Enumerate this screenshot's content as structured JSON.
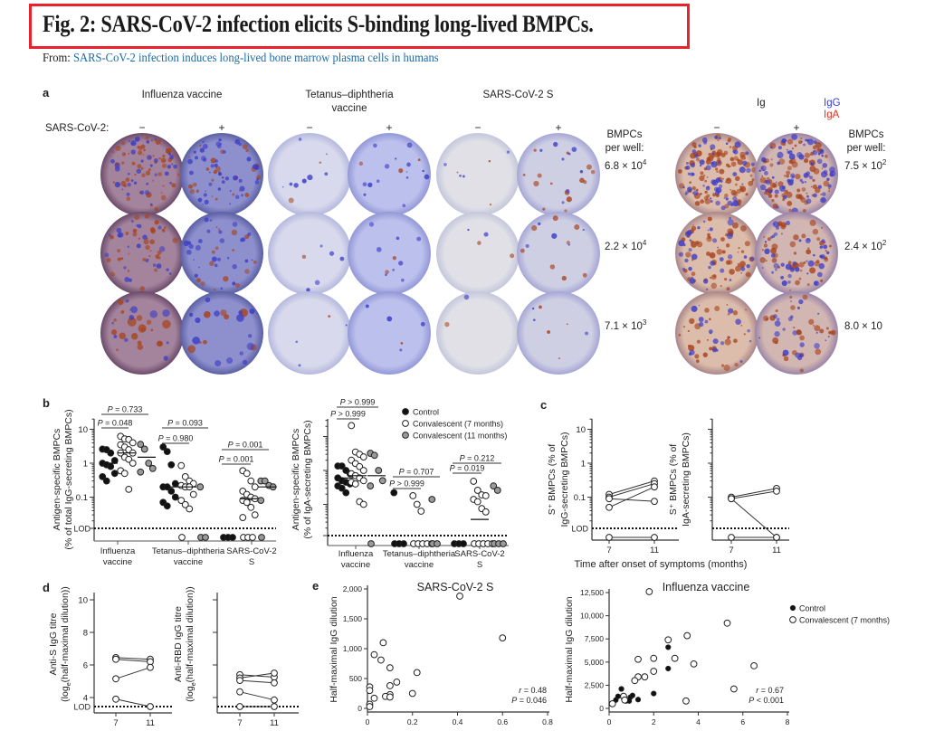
{
  "figure": {
    "title": "Fig. 2: SARS-CoV-2 infection elicits S-binding long-lived BMPCs.",
    "from_label": "From:",
    "source_link": "SARS-CoV-2 infection induces long-lived bone marrow plasma cells in humans",
    "title_box_color": "#e8212b",
    "link_color": "#1d6aa5"
  },
  "panel_a": {
    "label": "a",
    "columns": [
      "Influenza vaccine",
      "Tetanus–diphtheria vaccine",
      "SARS-CoV-2 S"
    ],
    "sars_cov2_label": "SARS-CoV-2:",
    "signs": [
      "−",
      "+"
    ],
    "bmpcs_per_well": [
      "BMPCs",
      "per well:"
    ],
    "antigen_counts": [
      {
        "mantissa": "6.8 × 10",
        "exponent": "4"
      },
      {
        "mantissa": "2.2 × 10",
        "exponent": "4"
      },
      {
        "mantissa": "7.1 × 10",
        "exponent": "3"
      }
    ],
    "ig": {
      "label": "Ig",
      "igg": "IgG",
      "iga": "IgA",
      "igg_color": "#3b3bd6",
      "iga_color": "#e03020",
      "counts": [
        {
          "mantissa": "7.5 × 10",
          "exponent": "2"
        },
        {
          "mantissa": "2.4 × 10",
          "exponent": "2"
        },
        {
          "mantissa": "8.0 × 10",
          "exponent": ""
        }
      ]
    }
  },
  "panel_b": {
    "label": "b",
    "legend": [
      "Control",
      "Convalescent (7 months)",
      "Convalescent (11 months)"
    ]
  },
  "panel_c": {
    "label": "c",
    "xlabel": "Time after onset of symptoms (months)"
  },
  "panel_d": {
    "label": "d"
  },
  "panel_e": {
    "label": "e",
    "legend": [
      "Control",
      "Convalescent (7 months)"
    ]
  },
  "chart_data": [
    {
      "panel": "b",
      "type": "scatter",
      "yscale": "log",
      "ylabel": [
        "Antigen-specific BMPCs",
        "(% of total IgG-secreting BMPCs)"
      ],
      "yticks": [
        "10",
        "1",
        "0.1"
      ],
      "ytick_values": [
        10,
        1,
        0.1
      ],
      "lod_label": "LOD",
      "categories": [
        "Influenza vaccine",
        "Tetanus–diphtheria vaccine",
        "SARS-CoV-2 S"
      ],
      "series": [
        {
          "name": "Control",
          "values": [
            [
              2.6,
              2.5,
              2.0,
              1.2,
              1.0,
              0.9,
              0.8,
              0.5,
              0.4,
              0.3
            ],
            [
              3.0,
              2.2,
              0.9,
              0.25,
              0.2,
              0.2,
              0.15,
              0.1,
              0.07,
              0.055
            ],
            [
              "LOD",
              "LOD",
              "LOD"
            ]
          ],
          "medians": [
            1.0,
            0.2,
            null
          ]
        },
        {
          "name": "Convalescent (7 months)",
          "values": [
            [
              6.2,
              5.2,
              5.0,
              4.0,
              3.5,
              3.0,
              2.5,
              2.0,
              2.0,
              1.5,
              1.3,
              1.0,
              0.6,
              0.5,
              0.17
            ],
            [
              0.85,
              0.4,
              0.3,
              0.25,
              0.22,
              0.2,
              0.2,
              0.12,
              0.08,
              0.06,
              0.045,
              "LOD"
            ],
            [
              0.6,
              0.5,
              0.3,
              0.2,
              0.15,
              0.12,
              0.1,
              0.09,
              0.08,
              0.07,
              0.05,
              0.03,
              0.025,
              "LOD",
              "LOD",
              "LOD"
            ]
          ],
          "medians": [
            2.0,
            0.2,
            0.09
          ]
        },
        {
          "name": "Convalescent (11 months)",
          "values": [
            [
              3.6,
              2.6,
              1.0,
              0.7,
              0.55
            ],
            [
              0.2,
              "LOD",
              "LOD"
            ],
            [
              0.3,
              0.3,
              0.22,
              0.2,
              0.08,
              "LOD"
            ]
          ],
          "medians": [
            1.5,
            null,
            0.2
          ]
        }
      ],
      "p_values": [
        {
          "category": 0,
          "between": [
            "Control",
            "Convalescent (7 months)"
          ],
          "label": "P = 0.048"
        },
        {
          "category": 0,
          "between": [
            "Control",
            "Convalescent (11 months)"
          ],
          "label": "P = 0.733"
        },
        {
          "category": 1,
          "between": [
            "Control",
            "Convalescent (7 months)"
          ],
          "label": "P = 0.980"
        },
        {
          "category": 1,
          "between": [
            "Control",
            "Convalescent (11 months)"
          ],
          "label": "P = 0.093"
        },
        {
          "category": 2,
          "between": [
            "Control",
            "Convalescent (7 months)"
          ],
          "label": "P = 0.001"
        },
        {
          "category": 2,
          "between": [
            "Control",
            "Convalescent (11 months)"
          ],
          "label": "P = 0.001"
        }
      ]
    },
    {
      "panel": "b",
      "type": "scatter",
      "yscale": "log",
      "ylabel": [
        "Antigen-specific BMPCs",
        "(% of IgA-secreting BMPCs)"
      ],
      "yticks": [],
      "ytick_values": [
        10,
        1,
        0.1
      ],
      "categories": [
        "Influenza vaccine",
        "Tetanus–diphtheria vaccine",
        "SARS-CoV-2 S"
      ],
      "series": [
        {
          "name": "Control",
          "values": [
            [
              1.35,
              1.35,
              1.0,
              0.8,
              0.6,
              0.5,
              0.45,
              0.4,
              0.35,
              0.3,
              0.22
            ],
            [
              0.22,
              "LOD",
              "LOD",
              "LOD"
            ],
            [
              "LOD",
              "LOD",
              "LOD"
            ]
          ],
          "medians": [
            0.6,
            null,
            null
          ]
        },
        {
          "name": "Convalescent (7 months)",
          "values": [
            [
              21,
              3.5,
              3.0,
              2.5,
              2.0,
              1.6,
              1.3,
              1.0,
              0.8,
              0.7,
              0.6,
              0.5,
              0.45,
              0.4,
              0.12,
              0.1
            ],
            [
              0.18,
              0.1,
              0.063,
              "LOD",
              "LOD",
              "LOD",
              "LOD",
              "LOD"
            ],
            [
              0.48,
              0.26,
              0.19,
              0.18,
              0.14,
              0.12,
              0.075,
              0.06,
              "LOD",
              "LOD",
              "LOD",
              "LOD",
              "LOD"
            ]
          ],
          "medians": [
            0.7,
            null,
            0.036
          ]
        },
        {
          "name": "Convalescent (11 months)",
          "values": [
            [
              3.2,
              2.8,
              1.0,
              0.5,
              0.35,
              "LOD"
            ],
            [
              0.14,
              "LOD",
              "LOD"
            ],
            [
              0.35,
              0.26,
              "LOD",
              "LOD",
              "LOD"
            ]
          ],
          "medians": [
            0.7,
            null,
            null
          ]
        }
      ],
      "p_values": [
        {
          "category": 0,
          "between": [
            "Control",
            "Convalescent (7 months)"
          ],
          "label": "P > 0.999"
        },
        {
          "category": 0,
          "between": [
            "Control",
            "Convalescent (11 months)"
          ],
          "label": "P > 0.999"
        },
        {
          "category": 1,
          "between": [
            "Control",
            "Convalescent (7 months)"
          ],
          "label": "P > 0.999"
        },
        {
          "category": 1,
          "between": [
            "Control",
            "Convalescent (11 months)"
          ],
          "label": "P = 0.707"
        },
        {
          "category": 2,
          "between": [
            "Control",
            "Convalescent (7 months)"
          ],
          "label": "P = 0.019"
        },
        {
          "category": 2,
          "between": [
            "Control",
            "Convalescent (11 months)"
          ],
          "label": "P = 0.212"
        }
      ]
    },
    {
      "panel": "c",
      "type": "line",
      "yscale": "log",
      "ylabel": [
        "S⁺ BMPCs (% of",
        "IgG-secreting BMPCs)"
      ],
      "yticks": [
        "10",
        "1",
        "0.1"
      ],
      "ytick_values": [
        10,
        1,
        0.1
      ],
      "lod_label": "LOD",
      "x": [
        7,
        11
      ],
      "xticks": [
        "7",
        "11"
      ],
      "series": [
        {
          "values": [
            0.12,
            0.3
          ]
        },
        {
          "values": [
            0.1,
            0.25
          ]
        },
        {
          "values": [
            0.09,
            0.075
          ]
        },
        {
          "values": [
            0.05,
            0.2
          ]
        },
        {
          "values": [
            "LOD",
            "LOD"
          ]
        }
      ]
    },
    {
      "panel": "c",
      "type": "line",
      "yscale": "log",
      "ylabel": [
        "S⁺ BMPCs (% of",
        "IgA-secreting BMPCs)"
      ],
      "yticks": [],
      "ytick_values": [
        10,
        1,
        0.1
      ],
      "x": [
        7,
        11
      ],
      "xticks": [
        "7",
        "11"
      ],
      "series": [
        {
          "values": [
            0.1,
            0.18
          ]
        },
        {
          "values": [
            0.09,
            0.15
          ]
        },
        {
          "values": [
            0.09,
            "LOD"
          ]
        },
        {
          "values": [
            "LOD",
            "LOD"
          ]
        }
      ]
    },
    {
      "panel": "d",
      "type": "line",
      "ylabel": [
        "Anti-S IgG titre",
        "(log",
        "e",
        "(half-maximal dilution))"
      ],
      "yticks": [
        "10",
        "8",
        "6",
        "4"
      ],
      "ytick_values": [
        10,
        8,
        6,
        4
      ],
      "lod_label": "LOD",
      "x": [
        7,
        11
      ],
      "xticks": [
        "7",
        "11"
      ],
      "series": [
        {
          "values": [
            6.45,
            6.35
          ]
        },
        {
          "values": [
            6.35,
            6.2
          ]
        },
        {
          "values": [
            5.15,
            5.85
          ]
        },
        {
          "values": [
            3.9,
            "LOD"
          ]
        }
      ]
    },
    {
      "panel": "d",
      "type": "line",
      "ylabel": [
        "Anti-RBD IgG titre",
        "(log",
        "e",
        "(half-maximal dilution))"
      ],
      "yticks": [],
      "ytick_values": [
        10,
        8,
        6,
        4
      ],
      "x": [
        7,
        11
      ],
      "xticks": [
        "7",
        "11"
      ],
      "series": [
        {
          "values": [
            5.4,
            5.25
          ]
        },
        {
          "values": [
            5.2,
            5.5
          ]
        },
        {
          "values": [
            5.05,
            4.9
          ]
        },
        {
          "values": [
            4.35,
            3.85
          ]
        },
        {
          "values": [
            "LOD",
            "LOD"
          ]
        }
      ]
    },
    {
      "panel": "e",
      "type": "scatter",
      "title": "SARS-CoV-2 S",
      "ylabel": "Half-maximal IgG dilution",
      "yticks": [
        "0",
        "500",
        "1,000",
        "1,500",
        "2,000"
      ],
      "ytick_values": [
        0,
        500,
        1000,
        1500,
        2000
      ],
      "xticks": [
        "0",
        "0.2",
        "0.4",
        "0.6",
        "0.8"
      ],
      "xtick_values": [
        0,
        0.2,
        0.4,
        0.6,
        0.8
      ],
      "xlim": [
        0,
        0.8
      ],
      "ylim": [
        0,
        2000
      ],
      "series": [
        {
          "name": "Convalescent (7 months)",
          "points": [
            [
              0.41,
              1880
            ],
            [
              0.6,
              1180
            ],
            [
              0.07,
              1100
            ],
            [
              0.03,
              900
            ],
            [
              0.06,
              810
            ],
            [
              0.1,
              680
            ],
            [
              0.22,
              600
            ],
            [
              0.13,
              440
            ],
            [
              0.1,
              380
            ],
            [
              0.01,
              360
            ],
            [
              0.01,
              300
            ],
            [
              0.2,
              250
            ],
            [
              0.1,
              230
            ],
            [
              0.08,
              200
            ],
            [
              0.1,
              190
            ],
            [
              0.03,
              170
            ],
            [
              0.01,
              70
            ],
            [
              0.01,
              30
            ]
          ]
        }
      ],
      "annotation": [
        "r = 0.48",
        "P = 0.046"
      ]
    },
    {
      "panel": "e",
      "type": "scatter",
      "title": "Influenza vaccine",
      "ylabel": "Half-maximal IgG dilution",
      "yticks": [
        "0",
        "2,500",
        "5,000",
        "7,500",
        "10,000",
        "12,500"
      ],
      "ytick_values": [
        0,
        2500,
        5000,
        7500,
        10000,
        12500
      ],
      "xticks": [
        "0",
        "2",
        "4",
        "6",
        "8"
      ],
      "xtick_values": [
        0,
        2,
        4,
        6,
        8
      ],
      "xlim": [
        0,
        8
      ],
      "ylim": [
        0,
        12500
      ],
      "legend_position": "right",
      "series": [
        {
          "name": "Control",
          "points": [
            [
              0.3,
              900
            ],
            [
              0.4,
              1300
            ],
            [
              0.55,
              2100
            ],
            [
              0.75,
              800
            ],
            [
              0.9,
              800
            ],
            [
              0.95,
              1200
            ],
            [
              1.05,
              1400
            ],
            [
              1.3,
              950
            ],
            [
              2.0,
              1600
            ],
            [
              2.65,
              6600
            ],
            [
              2.65,
              4300
            ]
          ]
        },
        {
          "name": "Convalescent (7 months)",
          "points": [
            [
              1.8,
              12600
            ],
            [
              5.3,
              9200
            ],
            [
              3.5,
              7850
            ],
            [
              2.65,
              7400
            ],
            [
              1.3,
              5300
            ],
            [
              2.0,
              5400
            ],
            [
              2.95,
              5400
            ],
            [
              3.8,
              4800
            ],
            [
              6.5,
              4600
            ],
            [
              2.0,
              4000
            ],
            [
              1.3,
              3400
            ],
            [
              1.6,
              3400
            ],
            [
              1.15,
              3000
            ],
            [
              5.6,
              2100
            ],
            [
              0.65,
              1300
            ],
            [
              0.7,
              900
            ],
            [
              3.45,
              800
            ],
            [
              0.15,
              500
            ]
          ]
        }
      ],
      "annotation": [
        "r = 0.67",
        "P < 0.001"
      ]
    }
  ]
}
